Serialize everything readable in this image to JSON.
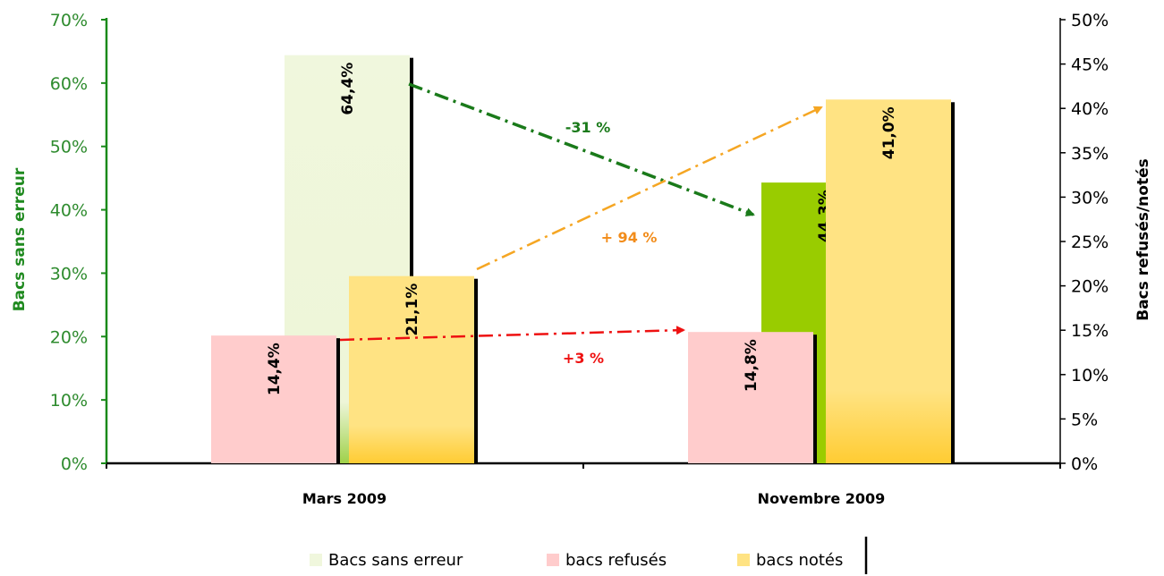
{
  "chart_data": {
    "type": "bar",
    "categories": [
      "Mars 2009",
      "Novembre 2009"
    ],
    "series": [
      {
        "name": "Bacs sans erreur",
        "axis": "left",
        "values": [
          64.4,
          44.3
        ],
        "labels": [
          "64,4%",
          "44,3%"
        ],
        "colors": [
          "#f0f7dd",
          "#99cc00"
        ]
      },
      {
        "name": "bacs refusés",
        "axis": "right",
        "values": [
          14.4,
          14.8
        ],
        "labels": [
          "14,4%",
          "14,8%"
        ],
        "colors": [
          "#ffcccc",
          "#ffcccc"
        ]
      },
      {
        "name": "bacs notés",
        "axis": "right",
        "values": [
          21.1,
          41.0
        ],
        "labels": [
          "21,1%",
          "41,0%"
        ],
        "colors": [
          "#ffe383",
          "#ffe383"
        ]
      }
    ],
    "ylabel_left": "Bacs sans erreur",
    "ylabel_right": "Bacs refusés/notés",
    "ylim_left": [
      0,
      70
    ],
    "ylim_right": [
      0,
      50
    ],
    "yticks_left": [
      "0%",
      "10%",
      "20%",
      "30%",
      "40%",
      "50%",
      "60%",
      "70%"
    ],
    "yticks_right": [
      "0%",
      "5%",
      "10%",
      "15%",
      "20%",
      "25%",
      "30%",
      "35%",
      "40%",
      "45%",
      "50%"
    ],
    "annotations": [
      {
        "text": "-31 %",
        "series": "Bacs sans erreur",
        "color": "#1a7a1a"
      },
      {
        "text": "+ 94 %",
        "series": "bacs notés",
        "color": "#f28c1a"
      },
      {
        "text": "+3 %",
        "series": "bacs refusés",
        "color": "#ee1111"
      }
    ],
    "legend": {
      "position": "bottom",
      "items": [
        "Bacs sans erreur",
        "bacs refusés",
        "bacs notés"
      ]
    },
    "grid": false
  }
}
